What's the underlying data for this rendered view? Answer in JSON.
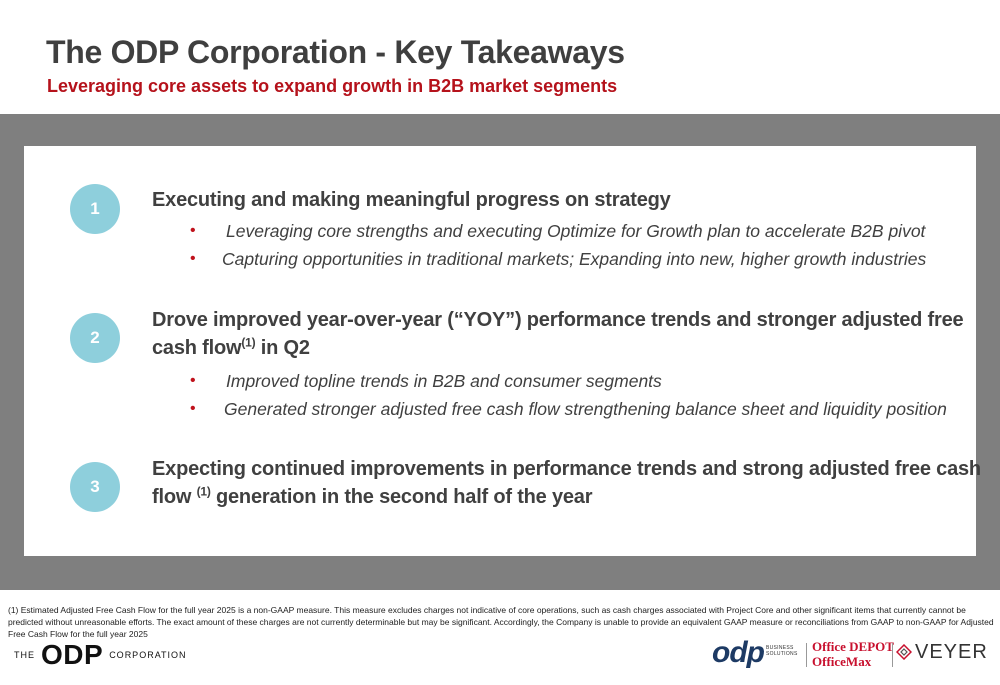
{
  "title": "The ODP Corporation - Key Takeaways",
  "subtitle": "Leveraging core assets to expand growth in B2B market segments",
  "takeaways": [
    {
      "number": "1",
      "heading": "Executing and making meaningful progress on strategy",
      "bullets": [
        "Leveraging core strengths and executing Optimize for Growth plan to accelerate B2B pivot",
        "Capturing opportunities in traditional markets; Expanding into new, higher growth industries"
      ]
    },
    {
      "number": "2",
      "heading_line1": "Drove improved year-over-year (“YOY”) performance trends and stronger adjusted free",
      "heading_line2_pre": "cash flow",
      "heading_line2_sup": "(1)",
      "heading_line2_post": " in Q2",
      "bullets": [
        "Improved topline trends in B2B and consumer segments",
        "Generated stronger adjusted free cash flow strengthening balance sheet and liquidity position"
      ]
    },
    {
      "number": "3",
      "heading_line1": "Expecting continued improvements in performance trends and strong adjusted free cash",
      "heading_line2_pre": "flow ",
      "heading_line2_sup": "(1)",
      "heading_line2_post": " generation in the second half of the year"
    }
  ],
  "bullet_glyph": "•",
  "footnote": "(1) Estimated Adjusted Free Cash Flow for the full year 2025 is a non-GAAP measure. This measure excludes charges not indicative of core operations, such as cash charges associated with Project Core and other significant items that currently cannot be predicted without unreasonable efforts. The exact amount of these charges are not currently determinable but may be significant. Accordingly, the Company is unable to provide an equivalent GAAP measure or reconciliations from GAAP to non-GAAP for Adjusted Free Cash Flow for the full year 2025",
  "footer_logo": {
    "the": "THE",
    "odp": "ODP",
    "corporation": "CORPORATION"
  },
  "brands": {
    "odp": "odp",
    "odp_sub": "BUSINESS SOLUTIONS",
    "office_depot": "Office DEPOT",
    "officemax": "OfficeMax",
    "veyer": "VEYER"
  },
  "colors": {
    "accent_red": "#b5121b",
    "circle_teal": "#8ecfdc",
    "band_gray": "#7f7f7f",
    "text_dark": "#404040"
  }
}
